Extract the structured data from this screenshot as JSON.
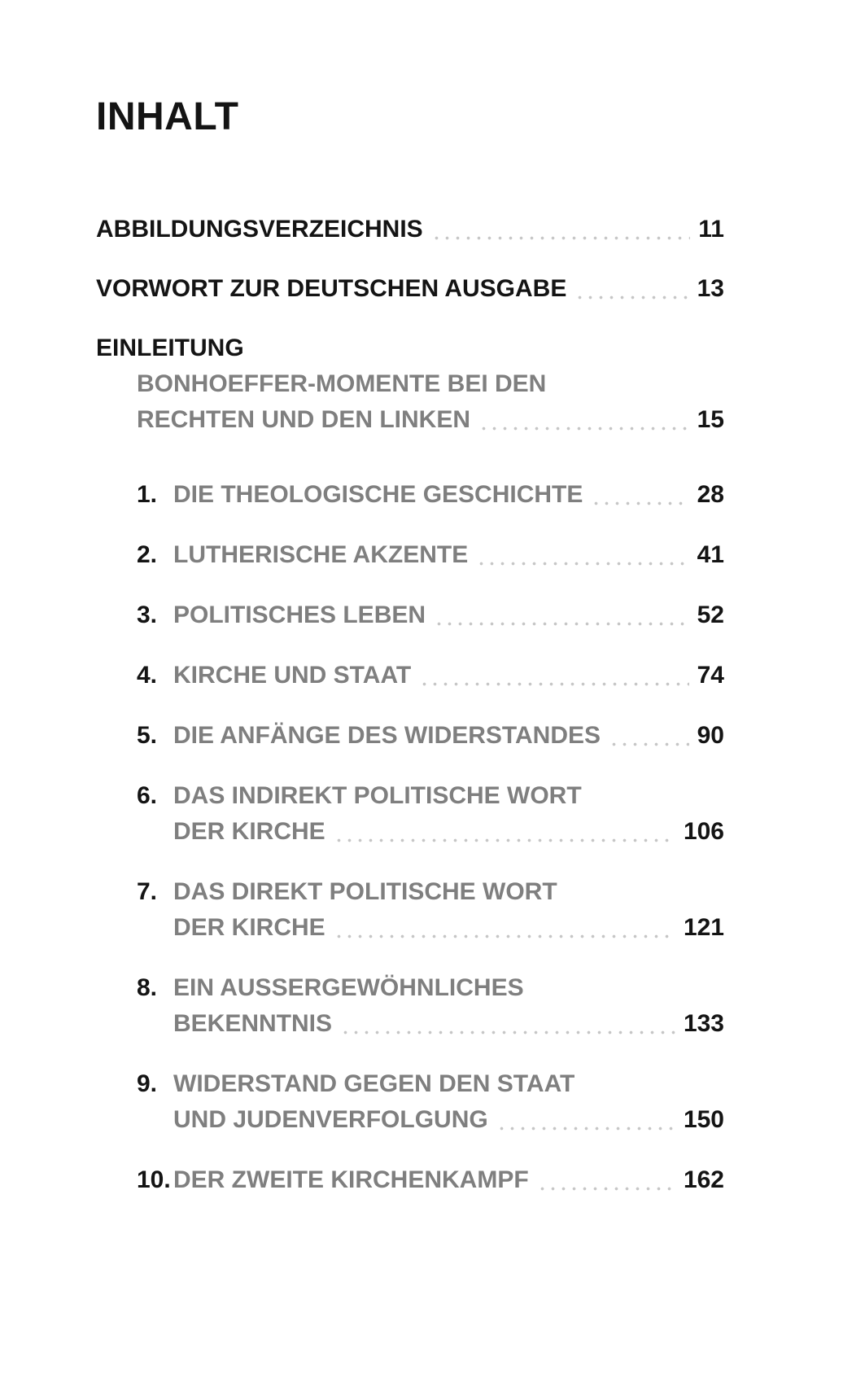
{
  "page": {
    "title": "INHALT",
    "front_matter": [
      {
        "label": "ABBILDUNGSVERZEICHNIS",
        "page": "11"
      },
      {
        "label": "VORWORT ZUR DEUTSCHEN AUSGABE",
        "page": "13"
      }
    ],
    "introduction": {
      "heading": "EINLEITUNG",
      "subtitle_line1": "BONHOEFFER-MOMENTE BEI DEN",
      "subtitle_line2": "RECHTEN UND DEN LINKEN",
      "page": "15"
    },
    "chapters": [
      {
        "number": "1.",
        "line1": "DIE THEOLOGISCHE GESCHICHTE",
        "line2": "",
        "page": "28"
      },
      {
        "number": "2.",
        "line1": "LUTHERISCHE AKZENTE",
        "line2": "",
        "page": "41"
      },
      {
        "number": "3.",
        "line1": "POLITISCHES LEBEN",
        "line2": "",
        "page": "52"
      },
      {
        "number": "4.",
        "line1": "KIRCHE UND STAAT",
        "line2": "",
        "page": "74"
      },
      {
        "number": "5.",
        "line1": "DIE ANFÄNGE DES WIDERSTANDES",
        "line2": "",
        "page": "90"
      },
      {
        "number": "6.",
        "line1": "DAS INDIREKT POLITISCHE WORT",
        "line2": "DER KIRCHE",
        "page": "106"
      },
      {
        "number": "7.",
        "line1": "DAS DIREKT POLITISCHE WORT",
        "line2": "DER KIRCHE",
        "page": "121"
      },
      {
        "number": "8.",
        "line1": "EIN AUSSERGEWÖHNLICHES",
        "line2": "BEKENNTNIS",
        "page": "133"
      },
      {
        "number": "9.",
        "line1": "WIDERSTAND GEGEN DEN STAAT",
        "line2": "UND JUDENVERFOLGUNG",
        "page": "150"
      },
      {
        "number": "10.",
        "line1": "DER ZWEITE KIRCHENKAMPF",
        "line2": "",
        "page": "162"
      }
    ],
    "colors": {
      "text_black": "#141414",
      "text_gray": "#7f7f7f",
      "leader_dots": "#c6c6c6",
      "background": "#ffffff"
    }
  }
}
